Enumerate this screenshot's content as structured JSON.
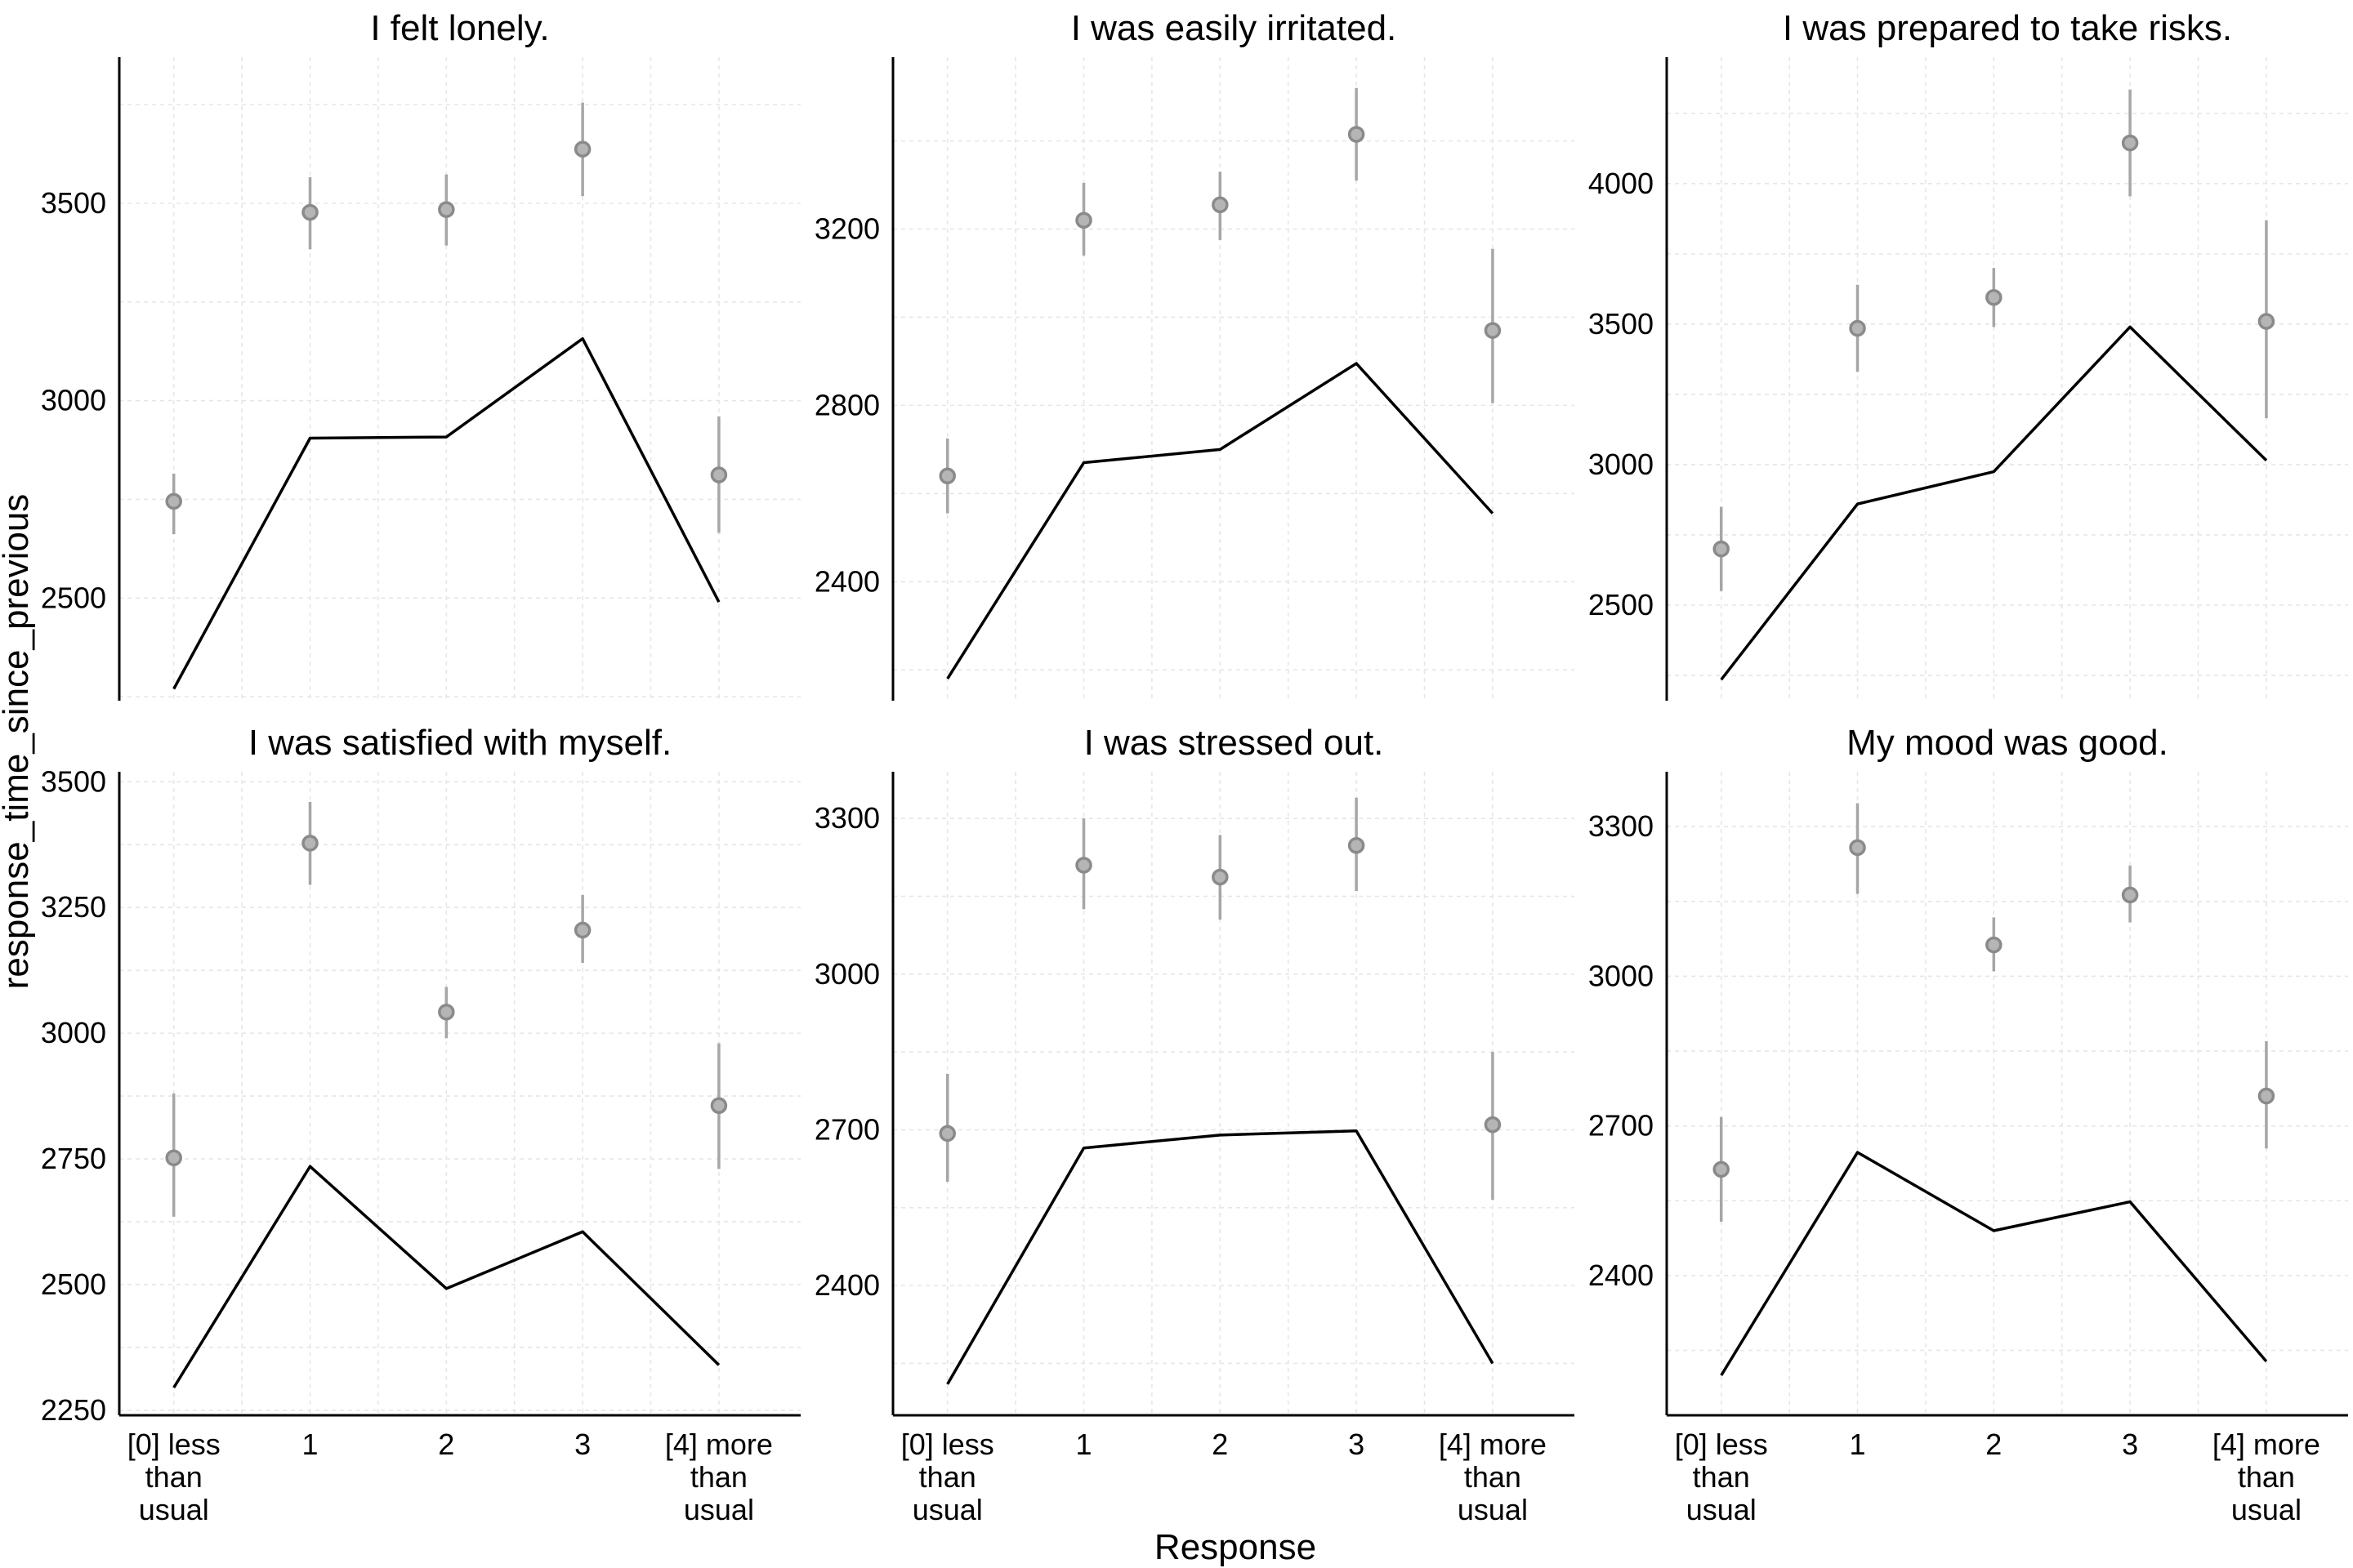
{
  "figure": {
    "xlabel": "Response",
    "ylabel": "response_time_since_previous"
  },
  "chart_data": [
    {
      "type": "line",
      "title": "I felt lonely.",
      "categories": [
        "[0] less than usual",
        "1",
        "2",
        "3",
        "[4] more than usual"
      ],
      "category_lines": [
        [
          "[0] less",
          "than",
          "usual"
        ],
        [
          "1"
        ],
        [
          "2"
        ],
        [
          "3"
        ],
        [
          "[4] more",
          "than",
          "usual"
        ]
      ],
      "ylim": [
        2240,
        3870
      ],
      "yticks": [
        2500,
        3000,
        3500
      ],
      "grid": true,
      "series": [
        {
          "kind": "line",
          "values": [
            2270,
            2905,
            2908,
            3157,
            2490
          ]
        },
        {
          "kind": "pointrange",
          "values": [
            2745,
            3477,
            3484,
            3637,
            2812
          ],
          "low": [
            2662,
            3383,
            3393,
            3518,
            2665
          ],
          "high": [
            2815,
            3566,
            3573,
            3755,
            2960
          ]
        }
      ]
    },
    {
      "type": "line",
      "title": "I was easily irritated.",
      "categories": [
        "[0] less than usual",
        "1",
        "2",
        "3",
        "[4] more than usual"
      ],
      "category_lines": [
        [
          "[0] less",
          "than",
          "usual"
        ],
        [
          "1"
        ],
        [
          "2"
        ],
        [
          "3"
        ],
        [
          "[4] more",
          "than",
          "usual"
        ]
      ],
      "ylim": [
        2130,
        3590
      ],
      "yticks": [
        2400,
        2800,
        3200
      ],
      "grid": true,
      "series": [
        {
          "kind": "line",
          "values": [
            2180,
            2670,
            2700,
            2895,
            2555
          ]
        },
        {
          "kind": "pointrange",
          "values": [
            2640,
            3220,
            3255,
            3415,
            2970
          ],
          "low": [
            2555,
            3140,
            3175,
            3310,
            2805
          ],
          "high": [
            2725,
            3305,
            3330,
            3520,
            3155
          ]
        }
      ]
    },
    {
      "type": "line",
      "title": "I was prepared to take risks.",
      "categories": [
        "[0] less than usual",
        "1",
        "2",
        "3",
        "[4] more than usual"
      ],
      "category_lines": [
        [
          "[0] less",
          "than",
          "usual"
        ],
        [
          "1"
        ],
        [
          "2"
        ],
        [
          "3"
        ],
        [
          "[4] more",
          "than",
          "usual"
        ]
      ],
      "ylim": [
        2160,
        4450
      ],
      "yticks": [
        2500,
        3000,
        3500,
        4000
      ],
      "grid": true,
      "series": [
        {
          "kind": "line",
          "values": [
            2235,
            2860,
            2975,
            3490,
            3015
          ]
        },
        {
          "kind": "pointrange",
          "values": [
            2700,
            3485,
            3595,
            4145,
            3510
          ],
          "low": [
            2550,
            3330,
            3490,
            3955,
            3165
          ],
          "high": [
            2850,
            3640,
            3700,
            4335,
            3870
          ]
        }
      ]
    },
    {
      "type": "line",
      "title": "I was satisfied with myself.",
      "categories": [
        "[0] less than usual",
        "1",
        "2",
        "3",
        "[4] more than usual"
      ],
      "category_lines": [
        [
          "[0] less",
          "than",
          "usual"
        ],
        [
          "1"
        ],
        [
          "2"
        ],
        [
          "3"
        ],
        [
          "[4] more",
          "than",
          "usual"
        ]
      ],
      "ylim": [
        2240,
        3520
      ],
      "yticks": [
        2250,
        2500,
        2750,
        3000,
        3250,
        3500
      ],
      "grid": true,
      "series": [
        {
          "kind": "line",
          "values": [
            2295,
            2735,
            2492,
            2605,
            2340
          ]
        },
        {
          "kind": "pointrange",
          "values": [
            2752,
            3378,
            3042,
            3205,
            2856
          ],
          "low": [
            2635,
            3295,
            2990,
            3140,
            2730
          ],
          "high": [
            2880,
            3460,
            3092,
            3275,
            2980
          ]
        }
      ]
    },
    {
      "type": "line",
      "title": "I was stressed out.",
      "categories": [
        "[0] less than usual",
        "1",
        "2",
        "3",
        "[4] more than usual"
      ],
      "category_lines": [
        [
          "[0] less",
          "than",
          "usual"
        ],
        [
          "1"
        ],
        [
          "2"
        ],
        [
          "3"
        ],
        [
          "[4] more",
          "than",
          "usual"
        ]
      ],
      "ylim": [
        2150,
        3390
      ],
      "yticks": [
        2400,
        2700,
        3000,
        3300
      ],
      "grid": true,
      "series": [
        {
          "kind": "line",
          "values": [
            2210,
            2665,
            2690,
            2698,
            2250
          ]
        },
        {
          "kind": "pointrange",
          "values": [
            2693,
            3210,
            3187,
            3248,
            2710
          ],
          "low": [
            2600,
            3125,
            3105,
            3160,
            2565
          ],
          "high": [
            2808,
            3300,
            3268,
            3340,
            2850
          ]
        }
      ]
    },
    {
      "type": "line",
      "title": "My mood was good.",
      "categories": [
        "[0] less than usual",
        "1",
        "2",
        "3",
        "[4] more than usual"
      ],
      "category_lines": [
        [
          "[0] less",
          "than",
          "usual"
        ],
        [
          "1"
        ],
        [
          "2"
        ],
        [
          "3"
        ],
        [
          "[4] more",
          "than",
          "usual"
        ]
      ],
      "ylim": [
        2120,
        3410
      ],
      "yticks": [
        2400,
        2700,
        3000,
        3300
      ],
      "grid": true,
      "series": [
        {
          "kind": "line",
          "values": [
            2200,
            2647,
            2490,
            2548,
            2228
          ]
        },
        {
          "kind": "pointrange",
          "values": [
            2613,
            3258,
            3063,
            3163,
            2760
          ],
          "low": [
            2508,
            3165,
            3010,
            3108,
            2655
          ],
          "high": [
            2718,
            3347,
            3118,
            3222,
            2870
          ]
        }
      ]
    }
  ]
}
